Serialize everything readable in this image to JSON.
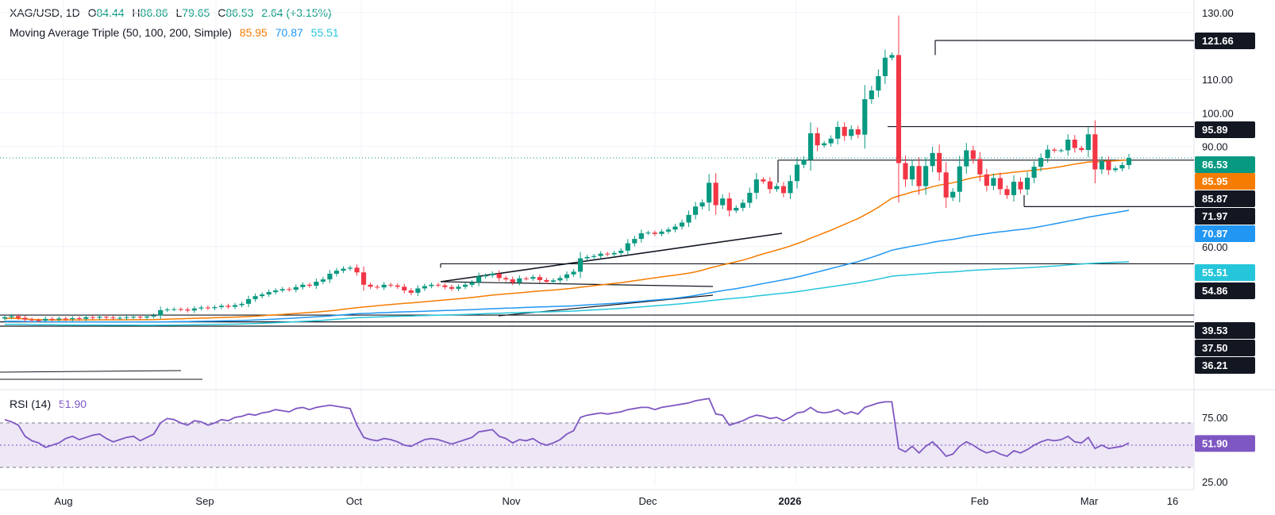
{
  "header": {
    "symbol": "XAG/USD, 1D",
    "open_label": "O",
    "open": "84.44",
    "high_label": "H",
    "high": "86.86",
    "low_label": "L",
    "low": "79.65",
    "close_label": "C",
    "close": "86.53",
    "change": "2.64 (+3.15%)",
    "ma_title": "Moving Average Triple (50, 100, 200, Simple)",
    "ma50": "85.95",
    "ma100": "70.87",
    "ma200": "55.51",
    "rsi_title": "RSI (14)",
    "rsi_value": "51.90"
  },
  "colors": {
    "up": "#089981",
    "down": "#f23645",
    "ma50": "#f57c00",
    "ma100": "#2196f3",
    "ma200": "#26c6da",
    "rsi": "#7e57c2",
    "rsi_band": "#ede7f6",
    "grid": "#f0f3fa"
  },
  "chart_data": {
    "type": "candlestick",
    "price_ticks": [
      60,
      90,
      100,
      110,
      130
    ],
    "price_tick_labels": [
      "60.00",
      "90.00",
      "100.00",
      "110.00",
      "130.00"
    ],
    "price_tags": [
      {
        "label": "121.66",
        "value": 121.66,
        "style": "dark"
      },
      {
        "label": "95.89",
        "value": 95.89,
        "style": "dark"
      },
      {
        "label": "86.53",
        "value": 86.53,
        "style": "up"
      },
      {
        "label": "85.95",
        "value": 85.95,
        "style": "ma50"
      },
      {
        "label": "85.87",
        "value": 85.87,
        "style": "dark"
      },
      {
        "label": "71.97",
        "value": 71.97,
        "style": "dark"
      },
      {
        "label": "70.87",
        "value": 70.87,
        "style": "ma100"
      },
      {
        "label": "55.51",
        "value": 55.51,
        "style": "ma200"
      },
      {
        "label": "54.86",
        "value": 54.86,
        "style": "dark"
      },
      {
        "label": "39.53",
        "value": 39.53,
        "style": "dark"
      },
      {
        "label": "37.50",
        "value": 37.5,
        "style": "dark"
      },
      {
        "label": "36.21",
        "value": 36.21,
        "style": "dark"
      }
    ],
    "x_labels": [
      "Aug",
      "Sep",
      "Oct",
      "Nov",
      "Dec",
      "2026",
      "Feb",
      "Mar",
      "16"
    ],
    "rsi_ticks": [
      "75.00",
      "25.00"
    ],
    "rsi_levels": [
      70,
      50,
      30
    ],
    "close_series": [
      38.9,
      39.2,
      38.7,
      38.2,
      38.0,
      37.9,
      38.4,
      38.2,
      38.5,
      38.3,
      38.6,
      38.4,
      38.9,
      38.7,
      39.0,
      38.8,
      38.6,
      38.7,
      38.9,
      39.0,
      38.8,
      39.1,
      39.4,
      41.0,
      41.2,
      41.3,
      41.2,
      40.9,
      41.5,
      41.8,
      41.6,
      41.9,
      42.3,
      42.0,
      42.5,
      42.9,
      44.3,
      45.2,
      45.7,
      46.4,
      46.9,
      47.3,
      47.1,
      47.9,
      48.6,
      48.3,
      49.5,
      50.2,
      51.9,
      52.8,
      53.4,
      53.7,
      52.3,
      48.6,
      48.0,
      47.8,
      48.6,
      48.4,
      48.0,
      46.9,
      46.2,
      47.5,
      48.2,
      48.6,
      48.4,
      47.9,
      47.4,
      48.0,
      48.6,
      49.3,
      51.1,
      51.4,
      51.9,
      50.6,
      50.2,
      49.3,
      50.5,
      50.4,
      50.9,
      50.0,
      49.5,
      49.9,
      50.6,
      51.7,
      52.5,
      56.5,
      56.9,
      57.2,
      57.9,
      57.7,
      58.1,
      58.8,
      61.0,
      62.3,
      64.0,
      64.2,
      63.8,
      64.5,
      65.1,
      66.0,
      67.2,
      69.5,
      72.0,
      73.2,
      79.1,
      72.4,
      74.4,
      70.8,
      71.6,
      73.1,
      76.1,
      80.1,
      79.5,
      77.2,
      78.1,
      76.0,
      79.6,
      84.5,
      86.0,
      93.9,
      90.3,
      90.9,
      92.3,
      95.8,
      93.1,
      95.1,
      93.5,
      104.1,
      106.7,
      111.0,
      116.5,
      117.3,
      85.0,
      80.1,
      84.1,
      78.1,
      84.1,
      88.0,
      82.2,
      74.7,
      76.4,
      84.0,
      88.8,
      86.2,
      81.6,
      78.2,
      80.5,
      77.2,
      75.4,
      79.4,
      77.1,
      80.6,
      83.9,
      86.5,
      89.0,
      88.7,
      88.8,
      92.0,
      89.5,
      88.9,
      93.6,
      83.1,
      85.6,
      82.9,
      83.4,
      84.4,
      86.5
    ],
    "ma50_end": 85.95,
    "ma100_end": 70.87,
    "ma200_end": 55.51,
    "rsi_series": [
      73,
      71,
      68,
      58,
      54,
      52,
      48,
      50,
      52,
      56,
      58,
      55,
      57,
      59,
      60,
      56,
      53,
      55,
      57,
      58,
      54,
      57,
      60,
      70,
      74,
      73,
      70,
      68,
      72,
      71,
      68,
      70,
      73,
      72,
      75,
      76,
      78,
      77,
      79,
      80,
      82,
      81,
      80,
      83,
      84,
      82,
      84,
      85,
      86,
      85,
      84,
      83,
      68,
      57,
      55,
      54,
      56,
      55,
      53,
      50,
      49,
      52,
      55,
      56,
      55,
      53,
      51,
      53,
      55,
      57,
      62,
      63,
      64,
      58,
      56,
      52,
      55,
      54,
      56,
      52,
      50,
      52,
      55,
      60,
      63,
      75,
      77,
      78,
      79,
      78,
      79,
      80,
      82,
      83,
      84,
      84,
      82,
      84,
      85,
      86,
      87,
      88,
      90,
      91,
      92,
      78,
      77,
      68,
      70,
      72,
      75,
      77,
      76,
      74,
      75,
      72,
      75,
      79,
      80,
      84,
      80,
      79,
      80,
      82,
      78,
      80,
      78,
      84,
      86,
      88,
      89,
      89,
      47,
      44,
      49,
      43,
      49,
      53,
      47,
      40,
      42,
      49,
      53,
      50,
      46,
      43,
      45,
      42,
      40,
      45,
      43,
      46,
      50,
      53,
      55,
      54,
      55,
      58,
      53,
      52,
      57,
      47,
      50,
      47,
      48,
      49,
      52
    ]
  }
}
